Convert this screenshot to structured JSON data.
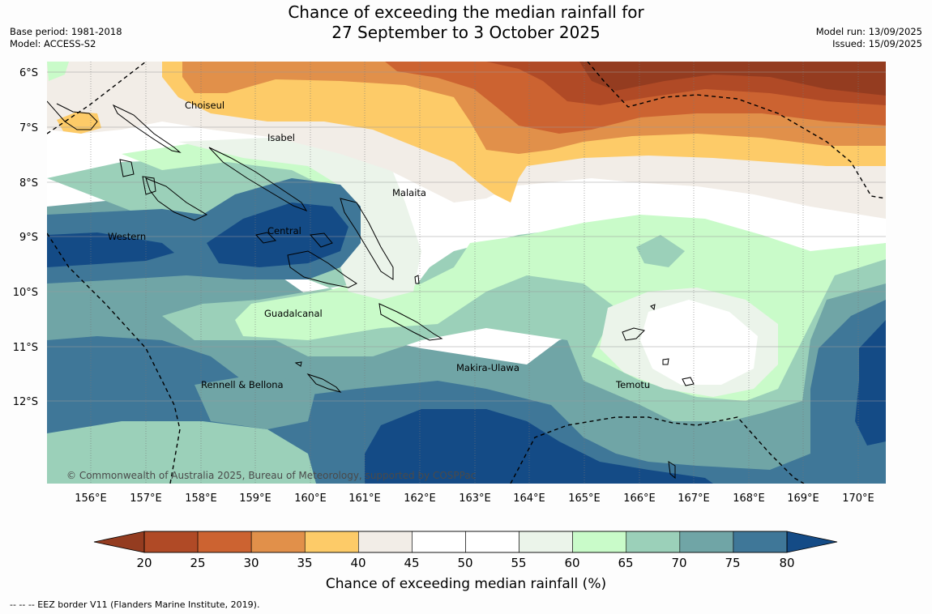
{
  "title": {
    "line1": "Chance of exceeding the median rainfall for",
    "line2": "27 September to 3 October 2025"
  },
  "meta": {
    "base_period": "Base period: 1981-2018",
    "model": "Model: ACCESS-S2",
    "model_run": "Model run: 13/09/2025",
    "issued": "Issued: 15/09/2025"
  },
  "map": {
    "lat_labels": [
      "6°S",
      "7°S",
      "8°S",
      "9°S",
      "10°S",
      "11°S",
      "12°S"
    ],
    "lon_labels": [
      "156°E",
      "157°E",
      "158°E",
      "159°E",
      "160°E",
      "161°E",
      "162°E",
      "163°E",
      "164°E",
      "165°E",
      "166°E",
      "167°E",
      "168°E",
      "169°E",
      "170°E"
    ],
    "provinces": [
      "Choiseul",
      "Isabel",
      "Malaita",
      "Western",
      "Central",
      "Guadalcanal",
      "Makira-Ulawa",
      "Temotu",
      "Rennell & Bellona"
    ],
    "copyright": "© Commonwealth of Australia 2025, Bureau of Meteorology, supported by COSPPac"
  },
  "colorbar": {
    "ticks": [
      "20",
      "25",
      "30",
      "35",
      "40",
      "45",
      "50",
      "55",
      "60",
      "65",
      "70",
      "75",
      "80"
    ],
    "colors": [
      "#b04a26",
      "#cc6331",
      "#e1904a",
      "#fdcb68",
      "#f2ede7",
      "#ffffff",
      "#ffffff",
      "#ebf4ea",
      "#c9fbc9",
      "#9bd0b9",
      "#70a5a6",
      "#3f7798"
    ],
    "below_color": "#943c20",
    "above_color": "#144b86",
    "label": "Chance of exceeding median rainfall (%)"
  },
  "footer": "-- -- -- EEZ border V11 (Flanders Marine Institute, 2019)."
}
